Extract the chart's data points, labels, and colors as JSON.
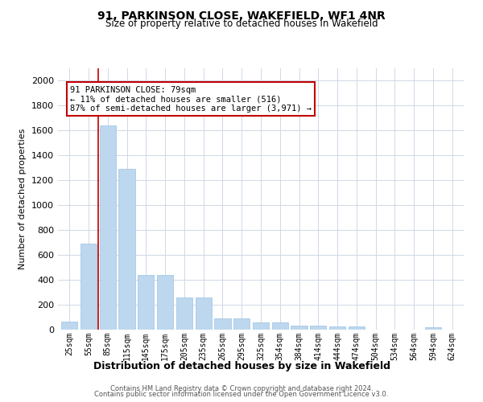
{
  "title": "91, PARKINSON CLOSE, WAKEFIELD, WF1 4NR",
  "subtitle": "Size of property relative to detached houses in Wakefield",
  "xlabel": "Distribution of detached houses by size in Wakefield",
  "ylabel": "Number of detached properties",
  "categories": [
    "25sqm",
    "55sqm",
    "85sqm",
    "115sqm",
    "145sqm",
    "175sqm",
    "205sqm",
    "235sqm",
    "265sqm",
    "295sqm",
    "325sqm",
    "354sqm",
    "384sqm",
    "414sqm",
    "444sqm",
    "474sqm",
    "504sqm",
    "534sqm",
    "564sqm",
    "594sqm",
    "624sqm"
  ],
  "values": [
    65,
    690,
    1640,
    1290,
    440,
    440,
    260,
    260,
    90,
    90,
    55,
    55,
    35,
    35,
    25,
    25,
    0,
    0,
    0,
    20,
    0
  ],
  "bar_color": "#bdd7ee",
  "bar_edge_color": "#9dc3e6",
  "vline_x": 1.5,
  "vline_color": "#c00000",
  "annotation_text": "91 PARKINSON CLOSE: 79sqm\n← 11% of detached houses are smaller (516)\n87% of semi-detached houses are larger (3,971) →",
  "annotation_box_color": "#ffffff",
  "annotation_box_edge": "#c00000",
  "ylim": [
    0,
    2100
  ],
  "yticks": [
    0,
    200,
    400,
    600,
    800,
    1000,
    1200,
    1400,
    1600,
    1800,
    2000
  ],
  "footer_line1": "Contains HM Land Registry data © Crown copyright and database right 2024.",
  "footer_line2": "Contains public sector information licensed under the Open Government Licence v3.0.",
  "bg_color": "#ffffff",
  "grid_color": "#d0d8e8"
}
